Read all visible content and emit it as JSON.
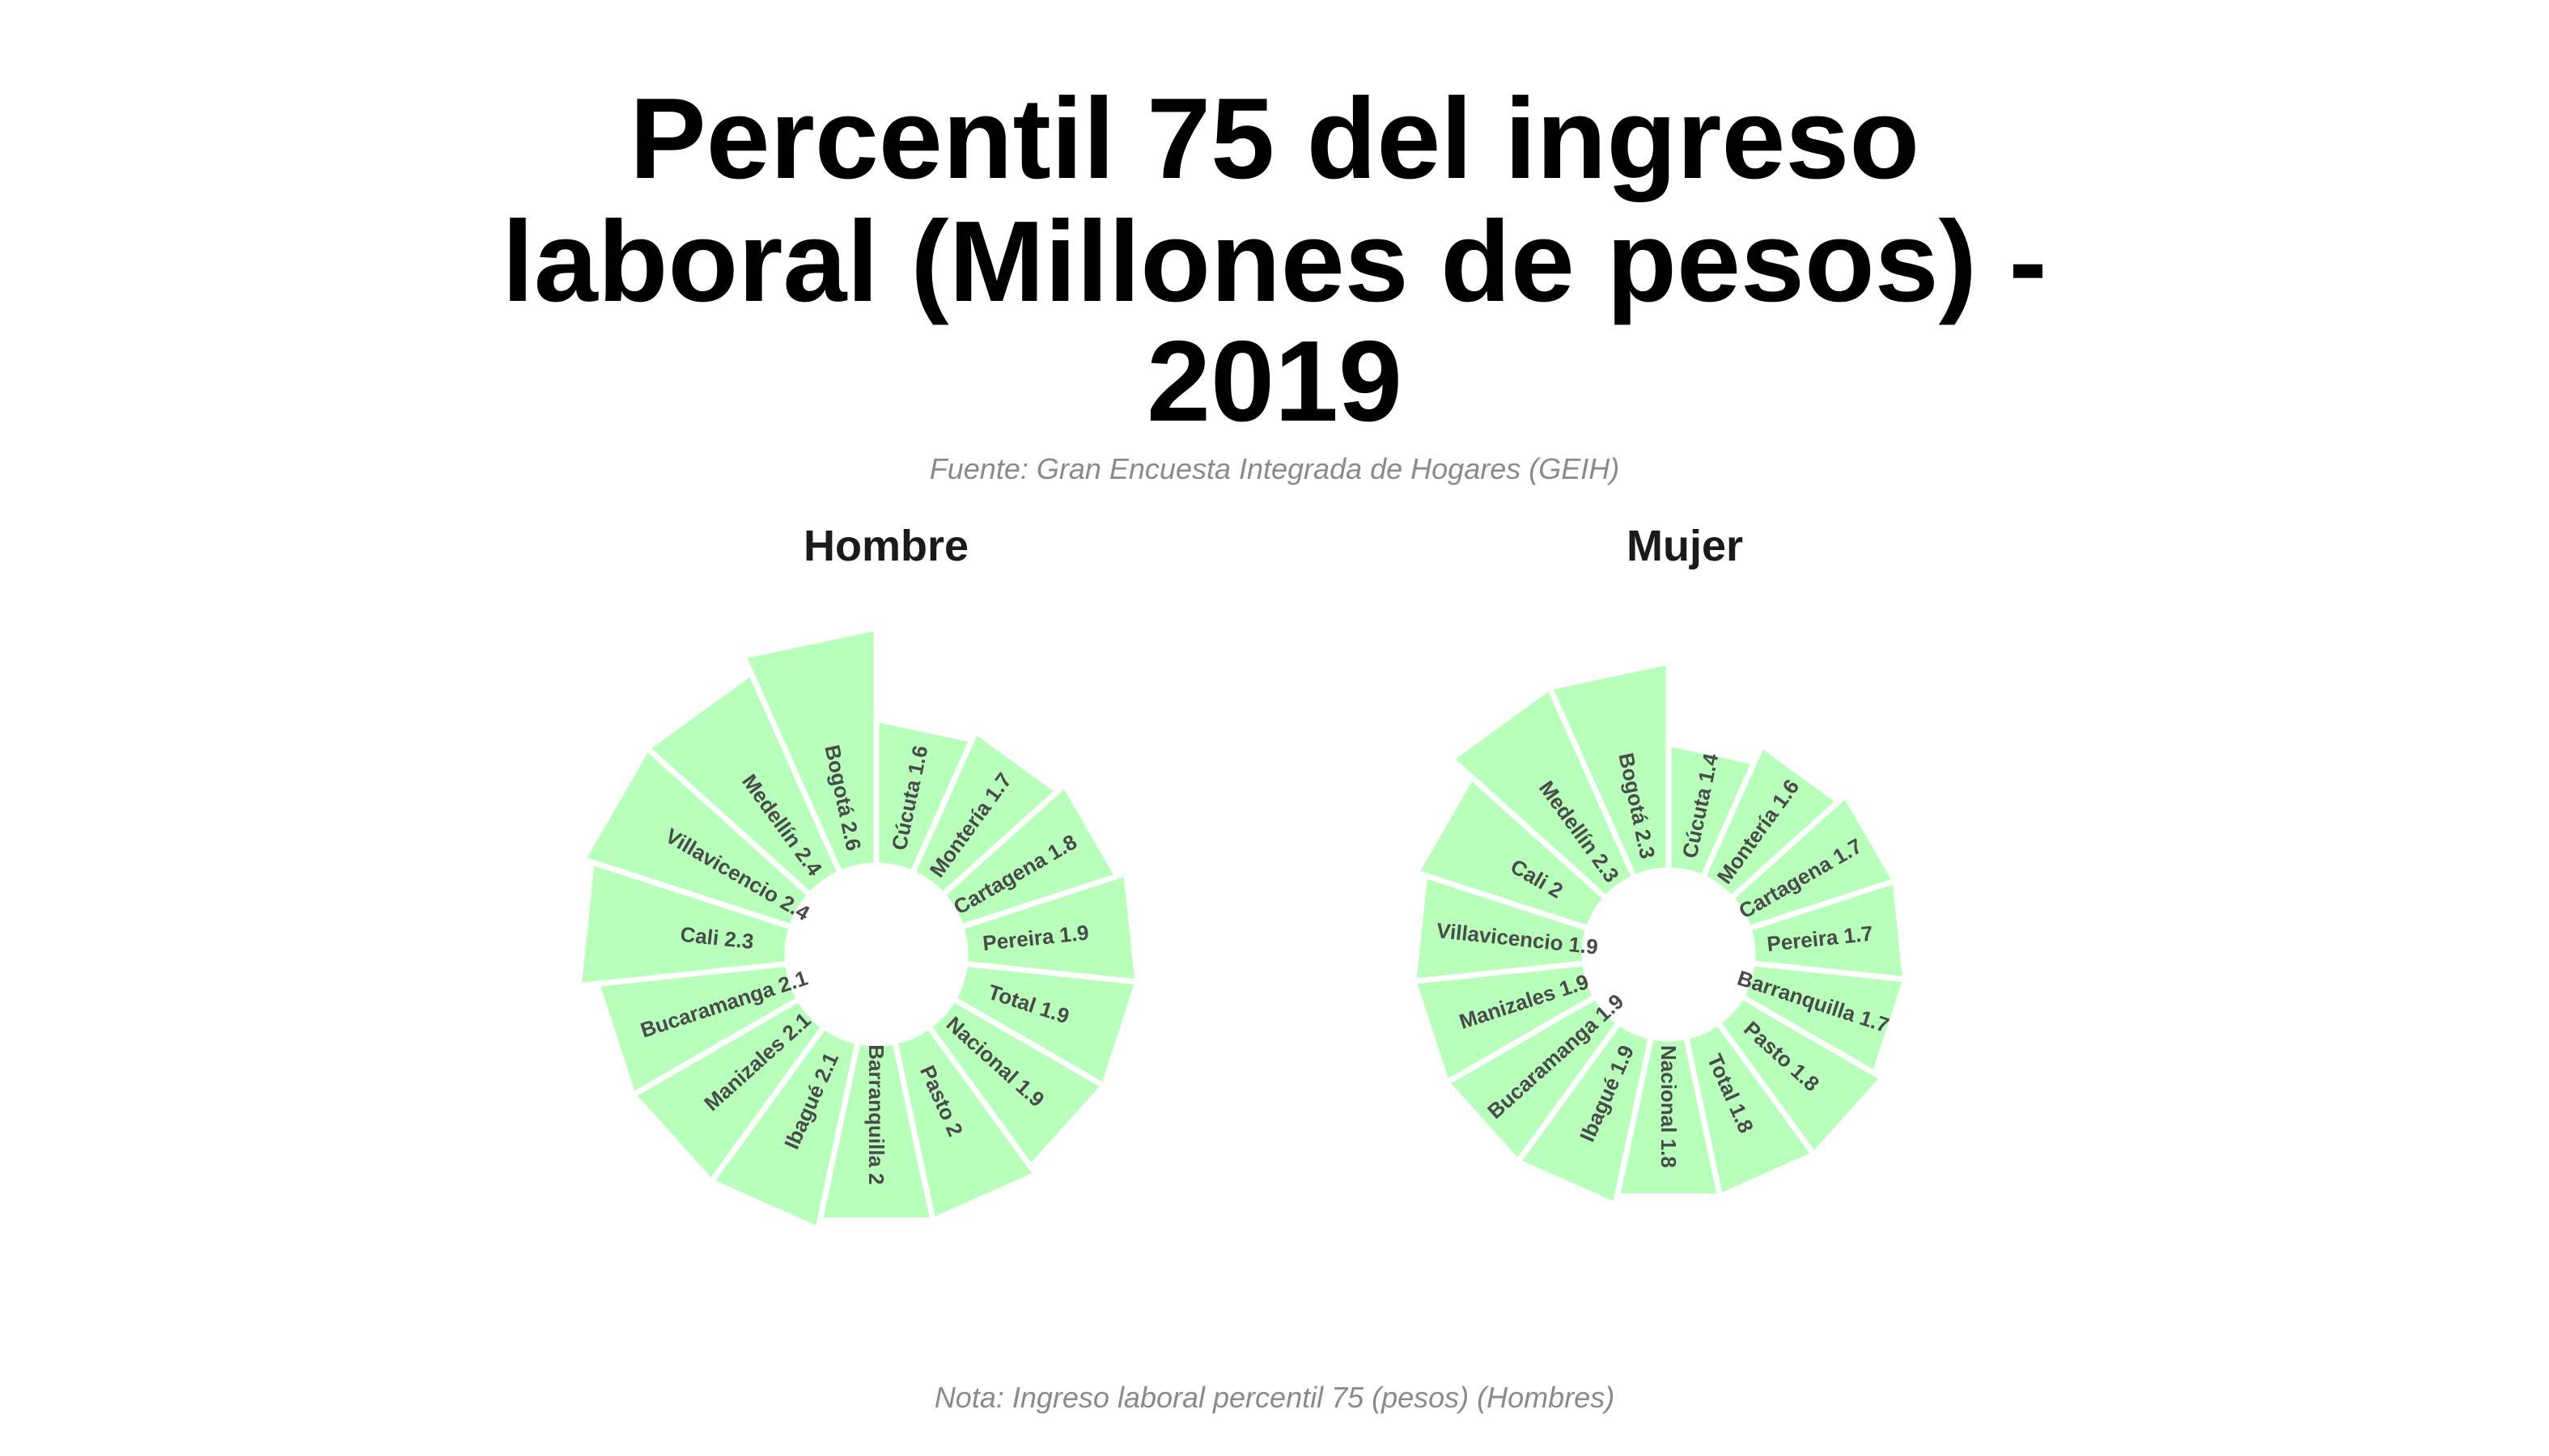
{
  "title_lines": [
    "Percentil 75 del ingreso",
    "laboral (Millones de pesos) -",
    "2019"
  ],
  "source": "Fuente: Gran Encuesta Integrada de Hogares (GEIH)",
  "note": "Nota: Ingreso laboral percentil 75 (pesos) (Hombres)",
  "colors": {
    "bar_fill": "#b7ffba",
    "bar_stroke": "#ffffff",
    "label": "#4a4a4a"
  },
  "chart_data": [
    {
      "type": "bar",
      "coord": "polar",
      "title": "Hombre",
      "categories": [
        "Cúcuta",
        "Montería",
        "Cartagena",
        "Pereira",
        "Total",
        "Nacional",
        "Pasto",
        "Barranquilla",
        "Ibagué",
        "Manizales",
        "Bucaramanga",
        "Cali",
        "Villavicencio",
        "Medellín",
        "Bogotá"
      ],
      "values": [
        1.6,
        1.7,
        1.8,
        1.9,
        1.9,
        1.9,
        2,
        2,
        2.1,
        2.1,
        2.1,
        2.3,
        2.4,
        2.4,
        2.6
      ],
      "labels": [
        "Cúcuta 1.6",
        "Montería 1.7",
        "Cartagena 1.8",
        "Pereira 1.9",
        "Total 1.9",
        "Nacional 1.9",
        "Pasto 2",
        "Barranquilla 2",
        "Ibagué 2.1",
        "Manizales 2.1",
        "Bucaramanga 2.1",
        "Cali 2.3",
        "Villavicencio 2.4",
        "Medellín 2.4",
        "Bogotá 2.6"
      ]
    },
    {
      "type": "bar",
      "coord": "polar",
      "title": "Mujer",
      "categories": [
        "Cúcuta",
        "Montería",
        "Cartagena",
        "Pereira",
        "Barranquilla",
        "Pasto",
        "Total",
        "Nacional",
        "Ibagué",
        "Bucaramanga",
        "Manizales",
        "Villavicencio",
        "Cali",
        "Medellín",
        "Bogotá"
      ],
      "values": [
        1.4,
        1.6,
        1.7,
        1.7,
        1.7,
        1.8,
        1.8,
        1.8,
        1.9,
        1.9,
        1.9,
        1.9,
        2,
        2.3,
        2.3
      ],
      "labels": [
        "Cúcuta 1.4",
        "Montería 1.6",
        "Cartagena 1.7",
        "Pereira 1.7",
        "Barranquilla 1.7",
        "Pasto 1.8",
        "Total 1.8",
        "Nacional 1.8",
        "Ibagué 1.9",
        "Bucaramanga 1.9",
        "Manizales 1.9",
        "Villavicencio 1.9",
        "Cali 2",
        "Medellín 2.3",
        "Bogotá 2.3"
      ]
    }
  ]
}
